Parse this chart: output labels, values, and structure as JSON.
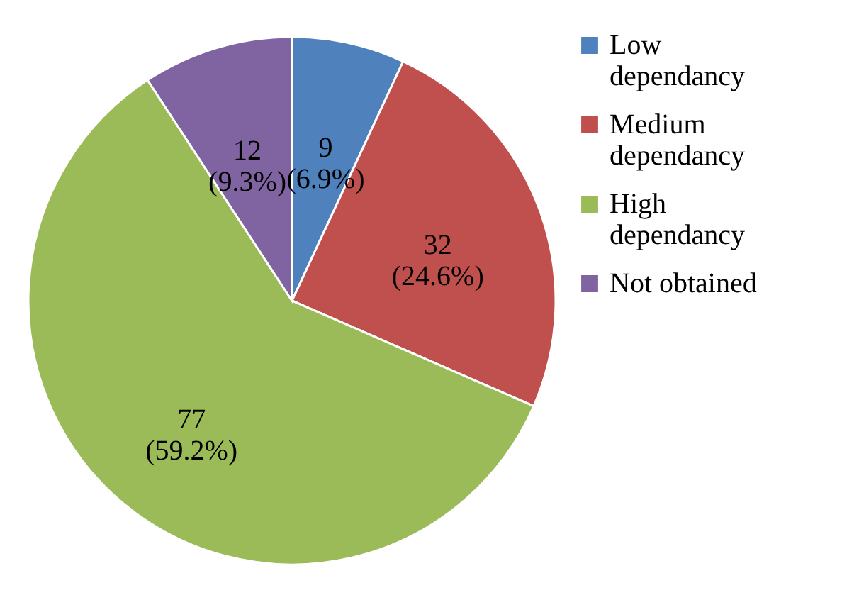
{
  "chart_data": {
    "type": "pie",
    "categories": [
      "Low dependancy",
      "Medium dependancy",
      "High dependancy",
      "Not obtained"
    ],
    "values": [
      9,
      32,
      77,
      12
    ],
    "colors": [
      "#4f81bd",
      "#c0504d",
      "#9bbb59",
      "#8064a2"
    ],
    "value_labels": [
      "9 (6.9%)",
      "32 (24.6%)",
      "77 (59.2%)",
      "12 (9.3%)"
    ],
    "legend": "right"
  }
}
